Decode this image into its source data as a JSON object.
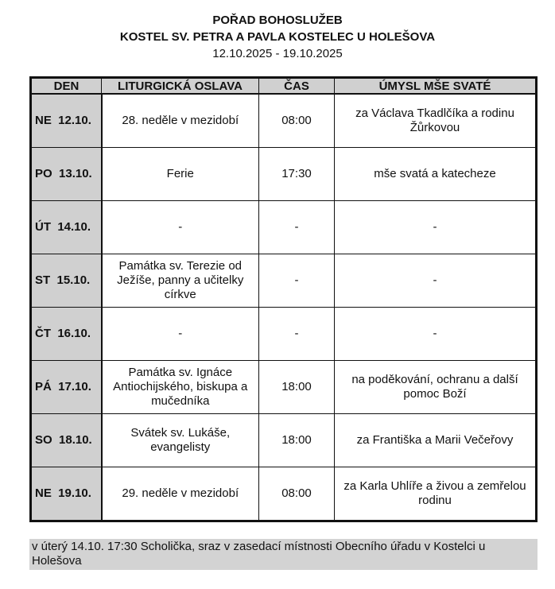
{
  "header": {
    "title": "POŘAD BOHOSLUŽEB",
    "church": "KOSTEL SV. PETRA A PAVLA KOSTELEC U HOLEŠOVA",
    "dates": "12.10.2025 - 19.10.2025"
  },
  "table": {
    "columns": [
      "DEN",
      "LITURGICKÁ OSLAVA",
      "ČAS",
      "ÚMYSL MŠE SVATÉ"
    ],
    "rows": [
      {
        "day": "NE  12.10.",
        "celebration": "28. neděle v mezidobí",
        "time": "08:00",
        "intention": "za Václava Tkadlčíka a rodinu Žůrkovou"
      },
      {
        "day": "PO  13.10.",
        "celebration": "Ferie",
        "time": "17:30",
        "intention": "mše svatá a katecheze"
      },
      {
        "day": "ÚT  14.10.",
        "celebration": "-",
        "time": "-",
        "intention": "-"
      },
      {
        "day": "ST  15.10.",
        "celebration": "Památka sv. Terezie od Ježíše, panny a učitelky církve",
        "time": "-",
        "intention": "-"
      },
      {
        "day": "ČT  16.10.",
        "celebration": "-",
        "time": "-",
        "intention": "-"
      },
      {
        "day": "PÁ  17.10.",
        "celebration": "Památka sv. Ignáce Antiochijského, biskupa a mučedníka",
        "time": "18:00",
        "intention": "na poděkování, ochranu a další pomoc Boží"
      },
      {
        "day": "SO  18.10.",
        "celebration": "Svátek sv. Lukáše, evangelisty",
        "time": "18:00",
        "intention": "za Františka a Marii Večeřovy"
      },
      {
        "day": "NE  19.10.",
        "celebration": "29. neděle v mezidobí",
        "time": "08:00",
        "intention": "za Karla Uhlíře a živou a zemřelou rodinu"
      }
    ]
  },
  "note": "v úterý 14.10. 17:30 Scholička, sraz v zasedací místnosti Obecního úřadu v Kostelci u Holešova"
}
